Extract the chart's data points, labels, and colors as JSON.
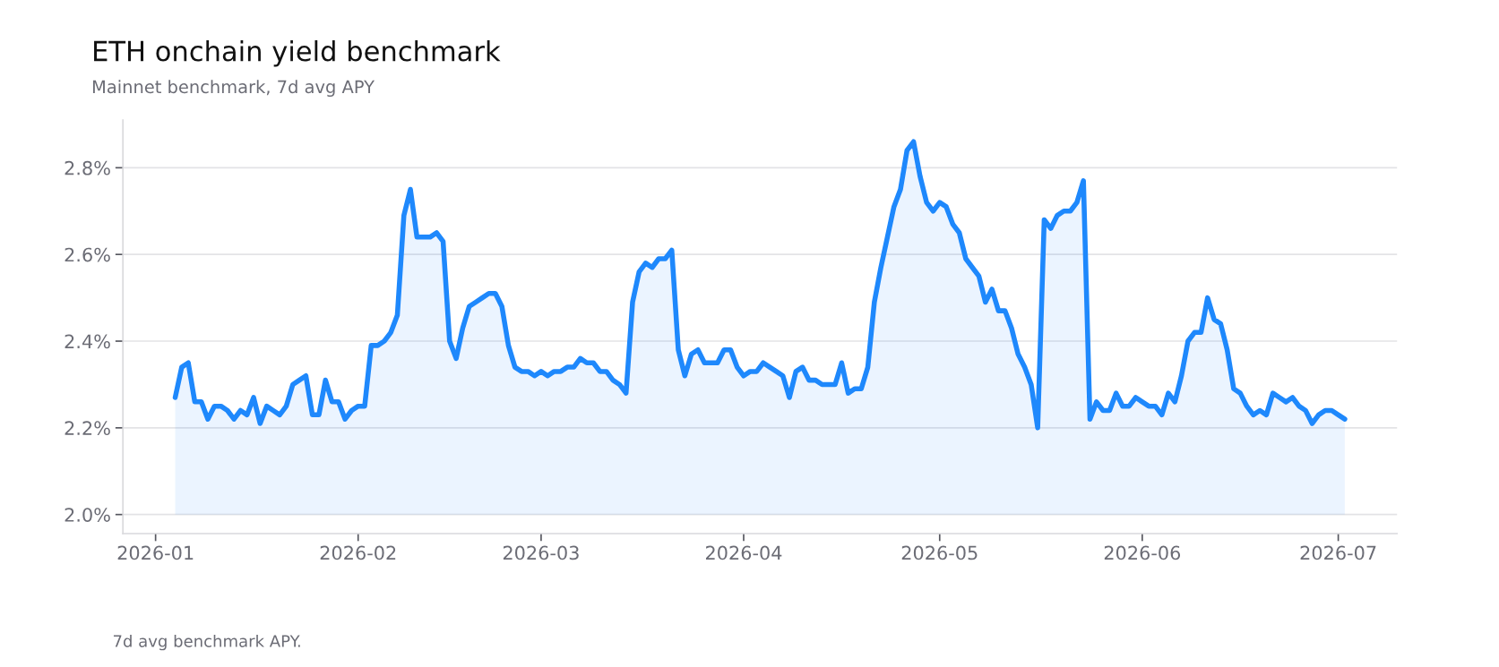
{
  "chart_data": {
    "type": "area",
    "title": "ETH onchain yield benchmark",
    "subtitle": "Mainnet benchmark, 7d avg APY",
    "annotations": [
      "7d avg benchmark APY."
    ],
    "x": [
      "2026-01-04",
      "2026-01-05",
      "2026-01-06",
      "2026-01-07",
      "2026-01-08",
      "2026-01-09",
      "2026-01-10",
      "2026-01-11",
      "2026-01-12",
      "2026-01-13",
      "2026-01-14",
      "2026-01-15",
      "2026-01-16",
      "2026-01-17",
      "2026-01-18",
      "2026-01-19",
      "2026-01-20",
      "2026-01-21",
      "2026-01-22",
      "2026-01-23",
      "2026-01-24",
      "2026-01-25",
      "2026-01-26",
      "2026-01-27",
      "2026-01-28",
      "2026-01-29",
      "2026-01-30",
      "2026-01-31",
      "2026-02-01",
      "2026-02-02",
      "2026-02-03",
      "2026-02-04",
      "2026-02-05",
      "2026-02-06",
      "2026-02-07",
      "2026-02-08",
      "2026-02-09",
      "2026-02-10",
      "2026-02-11",
      "2026-02-12",
      "2026-02-13",
      "2026-02-14",
      "2026-02-15",
      "2026-02-16",
      "2026-02-17",
      "2026-02-18",
      "2026-02-19",
      "2026-02-20",
      "2026-02-21",
      "2026-02-22",
      "2026-02-23",
      "2026-02-24",
      "2026-02-25",
      "2026-02-26",
      "2026-02-27",
      "2026-02-28",
      "2026-03-01",
      "2026-03-02",
      "2026-03-03",
      "2026-03-04",
      "2026-03-05",
      "2026-03-06",
      "2026-03-07",
      "2026-03-08",
      "2026-03-09",
      "2026-03-10",
      "2026-03-11",
      "2026-03-12",
      "2026-03-13",
      "2026-03-14",
      "2026-03-15",
      "2026-03-16",
      "2026-03-17",
      "2026-03-18",
      "2026-03-19",
      "2026-03-20",
      "2026-03-21",
      "2026-03-22",
      "2026-03-23",
      "2026-03-24",
      "2026-03-25",
      "2026-03-26",
      "2026-03-27",
      "2026-03-28",
      "2026-03-29",
      "2026-03-30",
      "2026-03-31",
      "2026-04-01",
      "2026-04-02",
      "2026-04-03",
      "2026-04-04",
      "2026-04-05",
      "2026-04-06",
      "2026-04-07",
      "2026-04-08",
      "2026-04-09",
      "2026-04-10",
      "2026-04-11",
      "2026-04-12",
      "2026-04-13",
      "2026-04-14",
      "2026-04-15",
      "2026-04-16",
      "2026-04-17",
      "2026-04-18",
      "2026-04-19",
      "2026-04-20",
      "2026-04-21",
      "2026-04-22",
      "2026-04-23",
      "2026-04-24",
      "2026-04-25",
      "2026-04-26",
      "2026-04-27",
      "2026-04-28",
      "2026-04-29",
      "2026-04-30",
      "2026-05-01",
      "2026-05-02",
      "2026-05-03",
      "2026-05-04",
      "2026-05-05",
      "2026-05-06",
      "2026-05-07",
      "2026-05-08",
      "2026-05-09",
      "2026-05-10",
      "2026-05-11",
      "2026-05-12",
      "2026-05-13",
      "2026-05-14",
      "2026-05-15",
      "2026-05-16",
      "2026-05-17",
      "2026-05-18",
      "2026-05-19",
      "2026-05-20",
      "2026-05-21",
      "2026-05-22",
      "2026-05-23",
      "2026-05-24",
      "2026-05-25",
      "2026-05-26",
      "2026-05-27",
      "2026-05-28",
      "2026-05-29",
      "2026-05-30",
      "2026-05-31",
      "2026-06-01",
      "2026-06-02",
      "2026-06-03",
      "2026-06-04",
      "2026-06-05",
      "2026-06-06",
      "2026-06-07",
      "2026-06-08",
      "2026-06-09",
      "2026-06-10",
      "2026-06-11",
      "2026-06-12",
      "2026-06-13",
      "2026-06-14",
      "2026-06-15",
      "2026-06-16",
      "2026-06-17",
      "2026-06-18",
      "2026-06-19",
      "2026-06-20",
      "2026-06-21",
      "2026-06-22",
      "2026-06-23",
      "2026-06-24",
      "2026-06-25",
      "2026-06-26",
      "2026-06-27",
      "2026-06-28",
      "2026-06-29",
      "2026-06-30",
      "2026-07-01",
      "2026-07-02"
    ],
    "series": [
      {
        "color": "#1e88fc",
        "values": [
          2.27,
          2.34,
          2.35,
          2.26,
          2.26,
          2.22,
          2.25,
          2.25,
          2.24,
          2.22,
          2.24,
          2.23,
          2.27,
          2.21,
          2.25,
          2.24,
          2.23,
          2.25,
          2.3,
          2.31,
          2.32,
          2.23,
          2.23,
          2.31,
          2.26,
          2.26,
          2.22,
          2.24,
          2.25,
          2.25,
          2.39,
          2.39,
          2.4,
          2.42,
          2.46,
          2.69,
          2.75,
          2.64,
          2.64,
          2.64,
          2.65,
          2.63,
          2.4,
          2.36,
          2.43,
          2.48,
          2.49,
          2.5,
          2.51,
          2.51,
          2.48,
          2.39,
          2.34,
          2.33,
          2.33,
          2.32,
          2.33,
          2.32,
          2.33,
          2.33,
          2.34,
          2.34,
          2.36,
          2.35,
          2.35,
          2.33,
          2.33,
          2.31,
          2.3,
          2.28,
          2.49,
          2.56,
          2.58,
          2.57,
          2.59,
          2.59,
          2.61,
          2.38,
          2.32,
          2.37,
          2.38,
          2.35,
          2.35,
          2.35,
          2.38,
          2.38,
          2.34,
          2.32,
          2.33,
          2.33,
          2.35,
          2.34,
          2.33,
          2.32,
          2.27,
          2.33,
          2.34,
          2.31,
          2.31,
          2.3,
          2.3,
          2.3,
          2.35,
          2.28,
          2.29,
          2.29,
          2.34,
          2.49,
          2.57,
          2.64,
          2.71,
          2.75,
          2.84,
          2.86,
          2.78,
          2.72,
          2.7,
          2.72,
          2.71,
          2.67,
          2.65,
          2.59,
          2.57,
          2.55,
          2.49,
          2.52,
          2.47,
          2.47,
          2.43,
          2.37,
          2.34,
          2.3,
          2.2,
          2.68,
          2.66,
          2.69,
          2.7,
          2.7,
          2.72,
          2.77,
          2.22,
          2.26,
          2.24,
          2.24,
          2.28,
          2.25,
          2.25,
          2.27,
          2.26,
          2.25,
          2.25,
          2.23,
          2.28,
          2.26,
          2.32,
          2.4,
          2.42,
          2.42,
          2.5,
          2.45,
          2.44,
          2.38,
          2.29,
          2.28,
          2.25,
          2.23,
          2.24,
          2.23,
          2.28,
          2.27,
          2.26,
          2.27,
          2.25,
          2.24,
          2.21,
          2.23,
          2.24,
          2.24,
          2.23,
          2.22
        ]
      }
    ],
    "xlim": [
      "2025-12-27",
      "2026-07-10"
    ],
    "xticks": [
      {
        "value": "2026-01-01",
        "label": "2026-01"
      },
      {
        "value": "2026-02-01",
        "label": "2026-02"
      },
      {
        "value": "2026-03-01",
        "label": "2026-03"
      },
      {
        "value": "2026-04-01",
        "label": "2026-04"
      },
      {
        "value": "2026-05-01",
        "label": "2026-05"
      },
      {
        "value": "2026-06-01",
        "label": "2026-06"
      },
      {
        "value": "2026-07-01",
        "label": "2026-07"
      }
    ],
    "ylim": [
      1.956,
      2.91
    ],
    "yticks": [
      {
        "value": 2.0,
        "label": "2.0%"
      },
      {
        "value": 2.2,
        "label": "2.2%"
      },
      {
        "value": 2.4,
        "label": "2.4%"
      },
      {
        "value": 2.6,
        "label": "2.6%"
      },
      {
        "value": 2.8,
        "label": "2.8%"
      }
    ],
    "grid": "y",
    "legend": false
  }
}
